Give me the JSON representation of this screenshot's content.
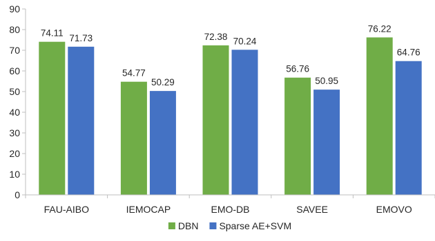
{
  "chart_data": {
    "type": "bar",
    "categories": [
      "FAU-AIBO",
      "IEMOCAP",
      "EMO-DB",
      "SAVEE",
      "EMOVO"
    ],
    "series": [
      {
        "name": "DBN",
        "color": "#70ad47",
        "values": [
          74.11,
          54.77,
          72.38,
          56.76,
          76.22
        ]
      },
      {
        "name": "Sparse AE+SVM",
        "color": "#4472c4",
        "values": [
          71.73,
          50.29,
          70.24,
          50.95,
          64.76
        ]
      }
    ],
    "title": "",
    "xlabel": "",
    "ylabel": "",
    "ylim": [
      0,
      90
    ],
    "yticks": [
      0,
      10,
      20,
      30,
      40,
      50,
      60,
      70,
      80,
      90
    ],
    "grid": false,
    "legend_position": "bottom"
  }
}
